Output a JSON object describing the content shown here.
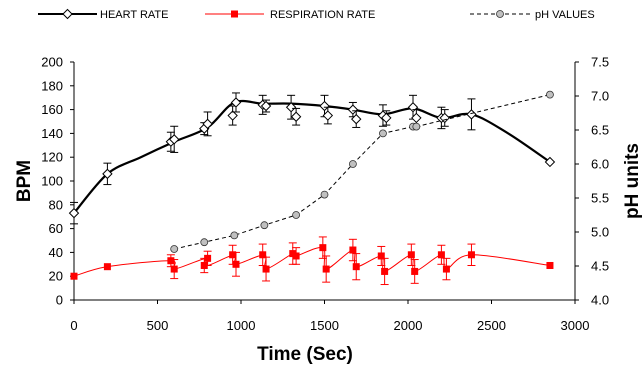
{
  "chart_data": {
    "type": "line",
    "legend": {
      "placement": "top",
      "entries": [
        "HEART RATE",
        "RESPIRATION RATE",
        "pH VALUES"
      ]
    },
    "xlabel": "Time (Sec)",
    "ylabel_left": "BPM",
    "ylabel_right": "pH units",
    "xlim": [
      0,
      3000
    ],
    "ylim_left": [
      0,
      200
    ],
    "ylim_right": [
      4.0,
      7.5
    ],
    "x_ticks": [
      "0",
      "500",
      "1000",
      "1500",
      "2000",
      "2500",
      "3000"
    ],
    "y_left_ticks": [
      "0",
      "20",
      "40",
      "60",
      "80",
      "100",
      "120",
      "140",
      "160",
      "180",
      "200"
    ],
    "y_right_ticks": [
      "4.0",
      "4.5",
      "5.0",
      "5.5",
      "6.0",
      "6.5",
      "7.0",
      "7.5"
    ],
    "grid": false,
    "series": [
      {
        "name": "HEART RATE",
        "axis": "left",
        "color": "#000000",
        "marker": "diamond-open",
        "line": "solid",
        "curve_x": [
          0,
          200,
          400,
          600,
          800,
          960,
          1130,
          1300,
          1500,
          1670,
          1850,
          2030,
          2200,
          2380,
          2600,
          2850
        ],
        "curve_y": [
          73,
          106,
          120,
          133,
          145,
          166,
          165,
          165,
          163,
          160,
          156,
          161,
          153,
          156,
          140,
          116
        ],
        "points": [
          {
            "x": 0,
            "y": 73,
            "err": 9
          },
          {
            "x": 200,
            "y": 106,
            "err": 9
          },
          {
            "x": 580,
            "y": 133,
            "err": 8
          },
          {
            "x": 600,
            "y": 135,
            "err": 11
          },
          {
            "x": 780,
            "y": 144,
            "err": 5
          },
          {
            "x": 800,
            "y": 148,
            "err": 10
          },
          {
            "x": 950,
            "y": 155,
            "err": 8
          },
          {
            "x": 970,
            "y": 166,
            "err": 8
          },
          {
            "x": 1130,
            "y": 164,
            "err": 8
          },
          {
            "x": 1150,
            "y": 163,
            "err": 5
          },
          {
            "x": 1300,
            "y": 162,
            "err": 10
          },
          {
            "x": 1330,
            "y": 154,
            "err": 7
          },
          {
            "x": 1500,
            "y": 163,
            "err": 9
          },
          {
            "x": 1520,
            "y": 155,
            "err": 7
          },
          {
            "x": 1670,
            "y": 160,
            "err": 6
          },
          {
            "x": 1690,
            "y": 152,
            "err": 7
          },
          {
            "x": 1850,
            "y": 155,
            "err": 9
          },
          {
            "x": 1870,
            "y": 153,
            "err": 6
          },
          {
            "x": 2030,
            "y": 162,
            "err": 10
          },
          {
            "x": 2050,
            "y": 153,
            "err": 7
          },
          {
            "x": 2200,
            "y": 153,
            "err": 9
          },
          {
            "x": 2220,
            "y": 153,
            "err": 7
          },
          {
            "x": 2380,
            "y": 156,
            "err": 13
          },
          {
            "x": 2850,
            "y": 116,
            "err": 0
          }
        ]
      },
      {
        "name": "RESPIRATION RATE",
        "axis": "left",
        "color": "#ff0000",
        "marker": "square-filled",
        "line": "solid",
        "curve_x": [
          0,
          200,
          580,
          600,
          790,
          800,
          960,
          970,
          1140,
          1150,
          1310,
          1330,
          1490,
          1510,
          1670,
          1690,
          1840,
          1860,
          2020,
          2040,
          2200,
          2230,
          2380,
          2850
        ],
        "curve_y": [
          20,
          28,
          33,
          26,
          35,
          29,
          38,
          30,
          38,
          26,
          39,
          37,
          44,
          26,
          42,
          28,
          37,
          24,
          38,
          24,
          38,
          26,
          38,
          29
        ],
        "points": [
          {
            "x": 0,
            "y": 20,
            "err": 0
          },
          {
            "x": 200,
            "y": 28,
            "err": 0
          },
          {
            "x": 580,
            "y": 33,
            "err": 5
          },
          {
            "x": 600,
            "y": 26,
            "err": 8
          },
          {
            "x": 780,
            "y": 29,
            "err": 6
          },
          {
            "x": 800,
            "y": 35,
            "err": 6
          },
          {
            "x": 950,
            "y": 38,
            "err": 8
          },
          {
            "x": 970,
            "y": 30,
            "err": 10
          },
          {
            "x": 1130,
            "y": 38,
            "err": 9
          },
          {
            "x": 1150,
            "y": 26,
            "err": 10
          },
          {
            "x": 1310,
            "y": 39,
            "err": 9
          },
          {
            "x": 1330,
            "y": 37,
            "err": 7
          },
          {
            "x": 1490,
            "y": 44,
            "err": 9
          },
          {
            "x": 1510,
            "y": 26,
            "err": 11
          },
          {
            "x": 1670,
            "y": 42,
            "err": 9
          },
          {
            "x": 1690,
            "y": 28,
            "err": 11
          },
          {
            "x": 1840,
            "y": 37,
            "err": 8
          },
          {
            "x": 1860,
            "y": 24,
            "err": 11
          },
          {
            "x": 2020,
            "y": 38,
            "err": 9
          },
          {
            "x": 2040,
            "y": 24,
            "err": 10
          },
          {
            "x": 2200,
            "y": 38,
            "err": 8
          },
          {
            "x": 2230,
            "y": 26,
            "err": 9
          },
          {
            "x": 2380,
            "y": 38,
            "err": 9
          },
          {
            "x": 2850,
            "y": 29,
            "err": 0
          }
        ]
      },
      {
        "name": "pH VALUES",
        "axis": "right",
        "color": "#000000",
        "marker": "circle-gray",
        "line": "dashed",
        "points": [
          {
            "x": 600,
            "y": 4.75
          },
          {
            "x": 780,
            "y": 4.85
          },
          {
            "x": 960,
            "y": 4.95
          },
          {
            "x": 1140,
            "y": 5.1
          },
          {
            "x": 1330,
            "y": 5.25
          },
          {
            "x": 1500,
            "y": 5.55
          },
          {
            "x": 1670,
            "y": 6.0
          },
          {
            "x": 1850,
            "y": 6.45
          },
          {
            "x": 2030,
            "y": 6.55
          },
          {
            "x": 2050,
            "y": 6.55
          },
          {
            "x": 2850,
            "y": 7.02
          }
        ]
      }
    ]
  }
}
